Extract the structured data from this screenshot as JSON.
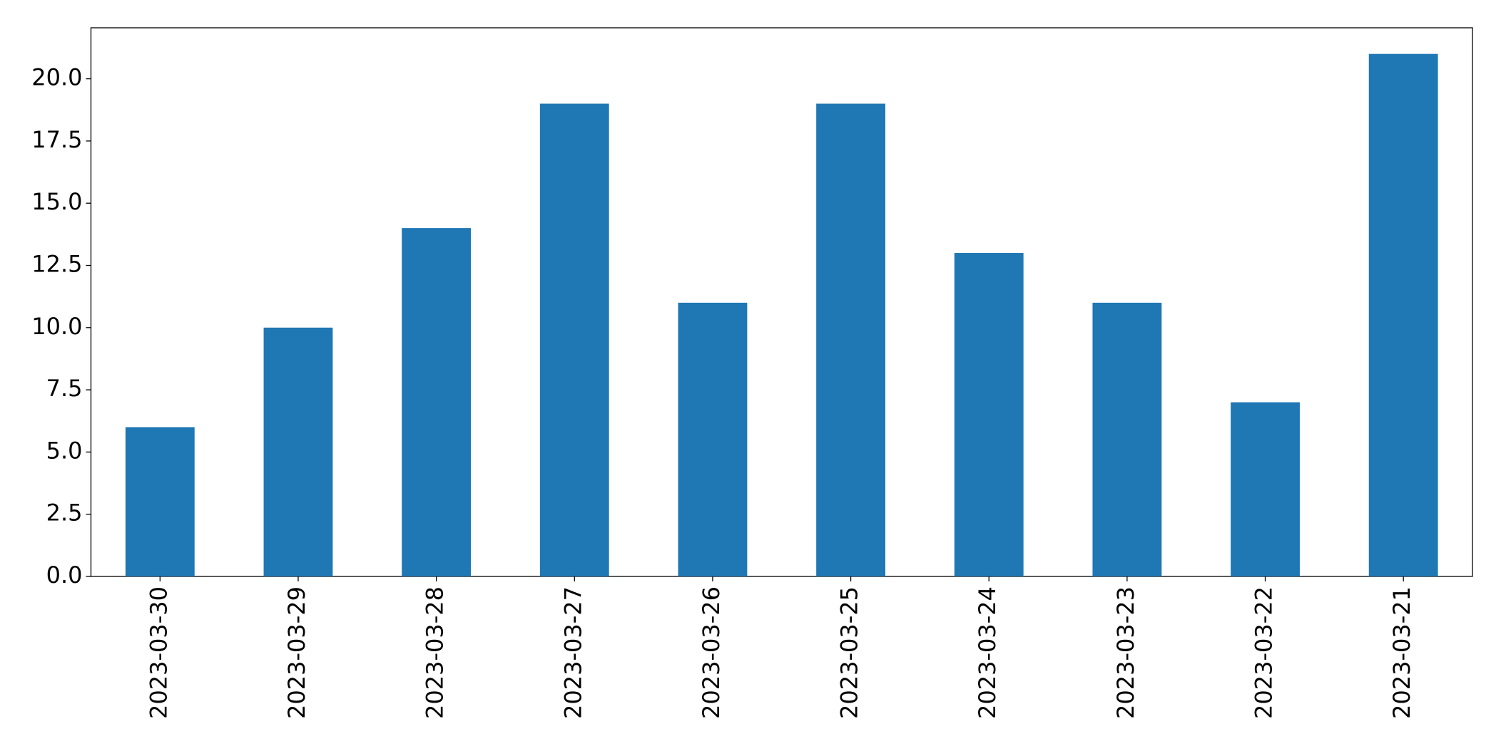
{
  "chart_data": {
    "type": "bar",
    "categories": [
      "2023-03-30",
      "2023-03-29",
      "2023-03-28",
      "2023-03-27",
      "2023-03-26",
      "2023-03-25",
      "2023-03-24",
      "2023-03-23",
      "2023-03-22",
      "2023-03-21"
    ],
    "values": [
      6,
      10,
      14,
      19,
      11,
      19,
      13,
      11,
      7,
      21
    ],
    "color": "#1f77b4",
    "ylim": [
      0,
      22.05
    ],
    "yticks": [
      {
        "value": 0,
        "label": "0.0"
      },
      {
        "value": 2.5,
        "label": "2.5"
      },
      {
        "value": 5,
        "label": "5.0"
      },
      {
        "value": 7.5,
        "label": "7.5"
      },
      {
        "value": 10,
        "label": "10.0"
      },
      {
        "value": 12.5,
        "label": "12.5"
      },
      {
        "value": 15,
        "label": "15.0"
      },
      {
        "value": 17.5,
        "label": "17.5"
      },
      {
        "value": 20,
        "label": "20.0"
      }
    ],
    "grid": false
  }
}
